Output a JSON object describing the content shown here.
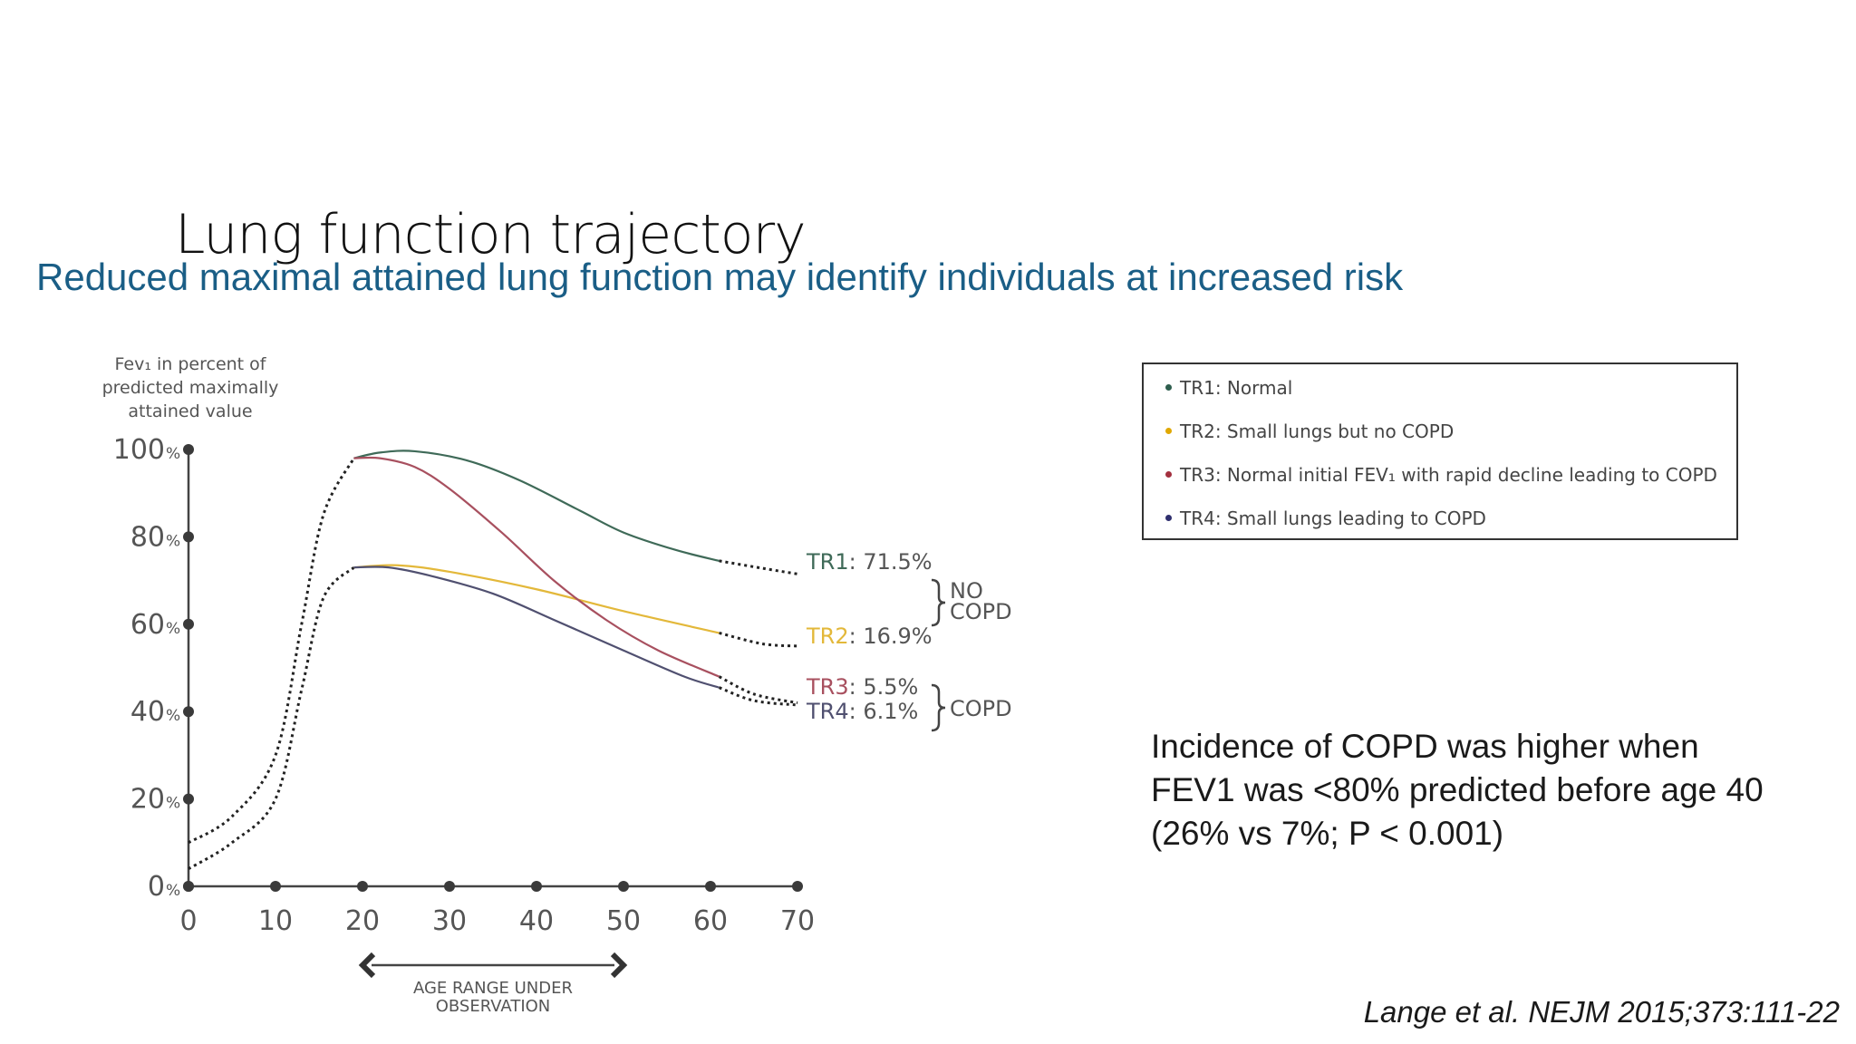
{
  "title": "Lung function trajectory",
  "subtitle": "Reduced maximal attained lung function may identify individuals at increased risk",
  "legend": [
    {
      "label": "TR1: Normal",
      "color": "#2e5e4e"
    },
    {
      "label": "TR2: Small lungs but no COPD",
      "color": "#e0a800"
    },
    {
      "label": "TR3: Normal initial FEV₁ with rapid decline leading to COPD",
      "color": "#a3303f"
    },
    {
      "label": "TR4: Small lungs leading to COPD",
      "color": "#2f2f6e"
    }
  ],
  "finding": {
    "lines": [
      "Incidence of COPD was higher when",
      "FEV1 was <80% predicted before age 40",
      "(26% vs 7%; P < 0.001)"
    ]
  },
  "citation": "Lange et al. NEJM 2015;373:111-22",
  "chart_data": {
    "type": "line",
    "ylabel": [
      "Fev₁ in percent of",
      "predicted maximally",
      "attained value"
    ],
    "xlabel": [
      "AGE RANGE UNDER",
      "OBSERVATION"
    ],
    "xlim": [
      0,
      70
    ],
    "ylim": [
      0,
      100
    ],
    "x_ticks": [
      "0",
      "10",
      "20",
      "30",
      "40",
      "50",
      "60",
      "70"
    ],
    "y_ticks": [
      {
        "value": 0,
        "label": "0",
        "unit": "%"
      },
      {
        "value": 20,
        "label": "20",
        "unit": "%"
      },
      {
        "value": 40,
        "label": "40",
        "unit": "%"
      },
      {
        "value": 60,
        "label": "60",
        "unit": "%"
      },
      {
        "value": 80,
        "label": "80",
        "unit": "%"
      },
      {
        "value": 100,
        "label": "100",
        "unit": "%"
      }
    ],
    "observation_range": [
      20,
      50
    ],
    "series": [
      {
        "name": "TR1",
        "color": "#3f6a58",
        "label_name": "TR1",
        "label_value": ": 71.5%",
        "value_color": "#555555",
        "dotted_before": [
          [
            0,
            10
          ],
          [
            5,
            16
          ],
          [
            10,
            30
          ],
          [
            13,
            60
          ],
          [
            15.5,
            85
          ],
          [
            19,
            98
          ]
        ],
        "solid": [
          [
            19,
            98
          ],
          [
            22,
            99.3
          ],
          [
            26,
            99.6
          ],
          [
            32,
            97.5
          ],
          [
            38,
            93
          ],
          [
            45,
            86
          ],
          [
            50,
            81
          ],
          [
            56,
            77
          ],
          [
            61,
            74.5
          ]
        ],
        "dotted_after": [
          [
            61,
            74.5
          ],
          [
            66,
            72.8
          ],
          [
            70,
            71.5
          ]
        ]
      },
      {
        "name": "TR2",
        "color": "#e3b83a",
        "label_name": "TR2",
        "label_value": ": 16.9%",
        "value_color": "#555555",
        "dotted_before": [
          [
            0,
            4
          ],
          [
            5,
            10
          ],
          [
            10,
            20
          ],
          [
            13,
            45
          ],
          [
            15.5,
            66
          ],
          [
            19,
            73
          ]
        ],
        "solid": [
          [
            19,
            73
          ],
          [
            24,
            73.5
          ],
          [
            30,
            72
          ],
          [
            40,
            68
          ],
          [
            50,
            63
          ],
          [
            61,
            58
          ]
        ],
        "dotted_after": [
          [
            61,
            58
          ],
          [
            66,
            55.5
          ],
          [
            70,
            55
          ]
        ]
      },
      {
        "name": "TR3",
        "color": "#a8505f",
        "label_name": "TR3",
        "label_value": ": 5.5%",
        "value_color": "#555555",
        "dotted_before": [],
        "solid": [
          [
            19,
            98
          ],
          [
            22,
            98
          ],
          [
            26,
            96
          ],
          [
            30,
            91
          ],
          [
            36,
            81
          ],
          [
            42,
            70
          ],
          [
            48,
            61
          ],
          [
            54,
            54
          ],
          [
            61,
            48
          ]
        ],
        "dotted_after": [
          [
            61,
            48
          ],
          [
            65,
            44
          ],
          [
            70,
            42
          ]
        ]
      },
      {
        "name": "TR4",
        "color": "#505070",
        "label_name": "TR4",
        "label_value": ": 6.1%",
        "value_color": "#555555",
        "dotted_before": [],
        "solid": [
          [
            19,
            73
          ],
          [
            23,
            73
          ],
          [
            28,
            71
          ],
          [
            35,
            67
          ],
          [
            42,
            61
          ],
          [
            50,
            54
          ],
          [
            57,
            48
          ],
          [
            61,
            45.5
          ]
        ],
        "dotted_after": [
          [
            61,
            45.5
          ],
          [
            65,
            42.5
          ],
          [
            70,
            41.5
          ]
        ]
      }
    ],
    "groups": [
      {
        "label": [
          "NO",
          "COPD"
        ],
        "members": [
          "TR1",
          "TR2"
        ]
      },
      {
        "label": [
          "COPD"
        ],
        "members": [
          "TR3",
          "TR4"
        ]
      }
    ]
  }
}
